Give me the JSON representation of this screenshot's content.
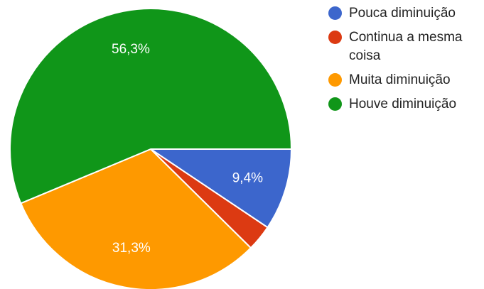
{
  "chart_data": {
    "type": "pie",
    "slices": [
      {
        "label": "Pouca diminuição",
        "value": 9.4,
        "display": "9,4%",
        "color": "#3c66cc"
      },
      {
        "label": "Continua a mesma coisa",
        "value": 3.0,
        "display": "",
        "color": "#dc3a12"
      },
      {
        "label": "Muita diminuição",
        "value": 31.3,
        "display": "31,3%",
        "color": "#fe9900"
      },
      {
        "label": "Houve diminuição",
        "value": 56.3,
        "display": "56,3%",
        "color": "#109619"
      }
    ],
    "legend": [
      "Pouca diminuição",
      "Continua a mesma\ncoisa",
      "Muita diminuição",
      "Houve diminuição"
    ],
    "legend_position": "right",
    "start_angle": "3 o'clock",
    "direction": "clockwise"
  }
}
